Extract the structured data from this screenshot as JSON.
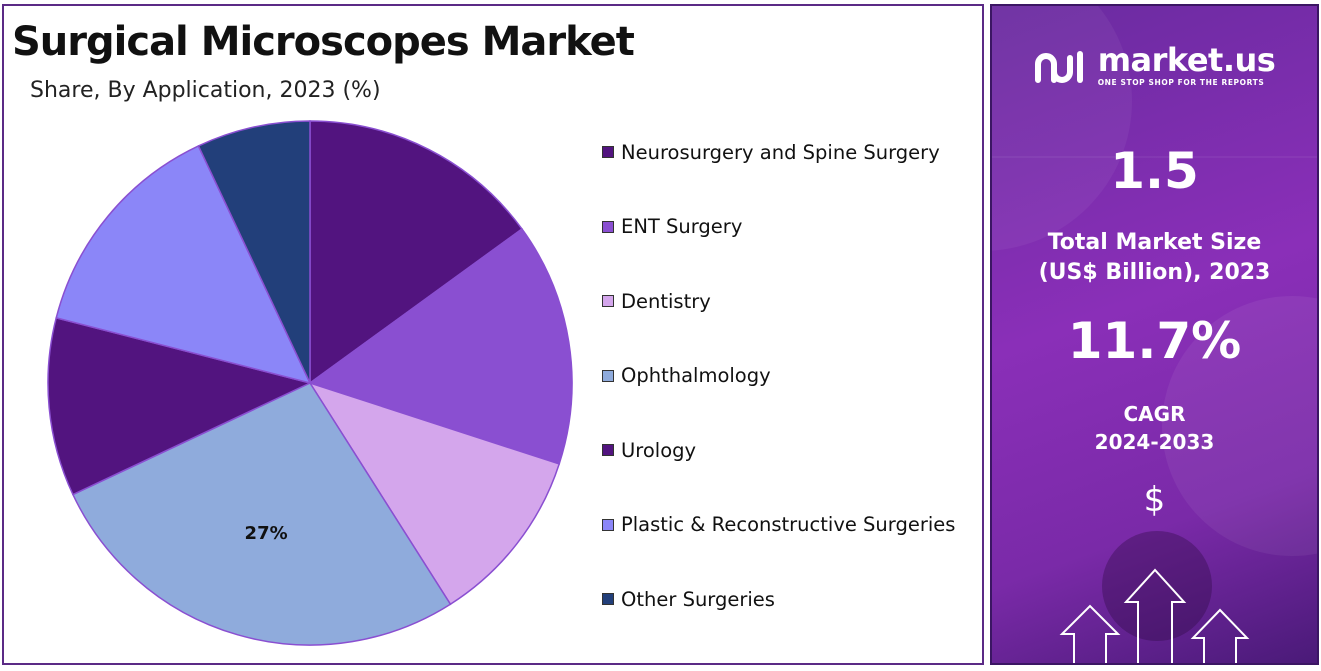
{
  "header": {
    "title": "Surgical Microscopes Market",
    "subtitle": "Share, By Application, 2023 (%)"
  },
  "chart_data": {
    "type": "pie",
    "title": "Surgical Microscopes Market",
    "subtitle": "Share, By Application, 2023 (%)",
    "start_angle_deg": 0,
    "direction": "clockwise",
    "legend_position": "right",
    "slices": [
      {
        "name": "Neurosurgery and Spine Surgery",
        "value": 15,
        "color": "#52147f",
        "label": ""
      },
      {
        "name": "ENT Surgery",
        "value": 15,
        "color": "#8a4fd1",
        "label": ""
      },
      {
        "name": "Dentistry",
        "value": 11,
        "color": "#d4a6ec",
        "label": ""
      },
      {
        "name": "Ophthalmology",
        "value": 27,
        "color": "#8fabdc",
        "label": "27%"
      },
      {
        "name": "Urology",
        "value": 11,
        "color": "#52147f",
        "label": ""
      },
      {
        "name": "Plastic & Reconstructive Surgeries",
        "value": 14,
        "color": "#8b86f8",
        "label": ""
      },
      {
        "name": "Other Surgeries",
        "value": 7,
        "color": "#223f7a",
        "label": ""
      }
    ]
  },
  "sidebar": {
    "logo_name": "market.us",
    "logo_tagline": "ONE STOP SHOP FOR THE REPORTS",
    "market_size_value": "1.5",
    "market_size_label_line1": "Total Market Size",
    "market_size_label_line2": "(US$ Billion), 2023",
    "cagr_value": "11.7%",
    "cagr_label_line1": "CAGR",
    "cagr_label_line2": "2024-2033",
    "dollar_symbol": "$",
    "icons": [
      "market-us-logo-icon",
      "up-arrow-icon",
      "dollar-icon"
    ]
  }
}
